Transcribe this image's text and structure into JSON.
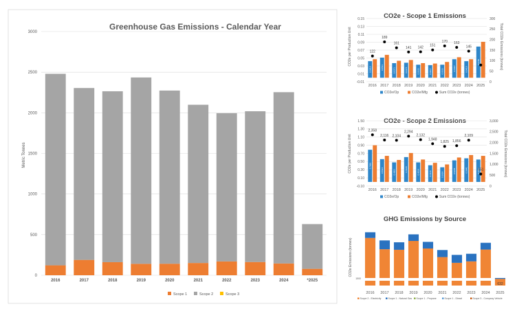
{
  "colors": {
    "scope1": "#ED7D31",
    "scope2": "#A5A5A5",
    "scope3": "#FFC000",
    "op": "#2E86C9",
    "mfg": "#ED7D31",
    "sum": "#000000",
    "grid": "#D9D9D9",
    "stack_orange": "#F08535",
    "stack_blue": "#2A72C0"
  },
  "chart_data": [
    {
      "id": "main",
      "type": "bar",
      "stacked": true,
      "title": "Greenhouse Gas Emissions - Calendar Year",
      "ylabel": "Metric Tonnes",
      "ylim": [
        0,
        3000
      ],
      "yticks": [
        0,
        500,
        1000,
        1500,
        2000,
        2500,
        3000
      ],
      "categories": [
        "2016",
        "2017",
        "2018",
        "2019",
        "2020",
        "2021",
        "2022",
        "2023",
        "2024",
        "*2025"
      ],
      "series": [
        {
          "name": "Scope 1",
          "values": [
            122,
            189,
            161,
            141,
            142,
            151,
            170,
            163,
            145,
            79
          ]
        },
        {
          "name": "Scope 2",
          "values": [
            2358,
            2116,
            2104,
            2294,
            2132,
            1948,
            1825,
            1856,
            2109,
            551
          ]
        },
        {
          "name": "Scope 3",
          "values": [
            0,
            0,
            0,
            0,
            0,
            0,
            0,
            0,
            0,
            0
          ]
        }
      ],
      "legend": "bottom"
    },
    {
      "id": "s1",
      "type": "bar",
      "title": "CO2e - Scope 1 Emissions",
      "ylabel": "CO2e per Production Unit",
      "y2label": "Total CO2e Emissions (tonnes)",
      "ylim": [
        -0.01,
        0.15
      ],
      "yticks": [
        "-0.01",
        "0.01",
        "0.03",
        "0.05",
        "0.07",
        "0.09",
        "0.11",
        "0.13",
        "0.15"
      ],
      "y2lim": [
        0,
        300
      ],
      "y2ticks": [
        "0",
        "50",
        "100",
        "150",
        "200",
        "250",
        "300"
      ],
      "categories": [
        "2016",
        "2017",
        "2018",
        "2019",
        "2020",
        "2021",
        "2022",
        "2023",
        "2024",
        "2025"
      ],
      "series": [
        {
          "name": "CO2e/Op",
          "values": [
            0.042,
            0.051,
            0.037,
            0.038,
            0.033,
            0.032,
            0.033,
            0.047,
            0.042,
            0.079
          ]
        },
        {
          "name": "CO2e/Mfg",
          "values": [
            0.047,
            0.058,
            0.043,
            0.045,
            0.037,
            0.036,
            0.04,
            0.052,
            0.047,
            0.091
          ]
        }
      ],
      "bar_value_labels": [
        "0.0419",
        "0.0511",
        "0.0371",
        "0.0376",
        "0.0333",
        "0.0317",
        "0.0333",
        "0.0467",
        "0.0419",
        "0.0786"
      ],
      "sum_series": {
        "name": "Sum CO2e (tonnes)",
        "values": [
          122,
          189,
          161,
          141,
          142,
          151,
          170,
          163,
          145,
          79
        ]
      },
      "sum_labels": [
        "122",
        "189",
        "161",
        "141",
        "142",
        "151",
        "170",
        "163",
        "145",
        ""
      ],
      "legend": "bottom"
    },
    {
      "id": "s2",
      "type": "bar",
      "title": "CO2e - Scope 2 Emissions",
      "ylabel": "CO2e per Production Unit",
      "y2label": "Total CO2e Emissions (tonnes)",
      "ylim": [
        -0.1,
        1.5
      ],
      "yticks": [
        "-0.10",
        "0.10",
        "0.30",
        "0.50",
        "0.70",
        "0.90",
        "1.10",
        "1.30",
        "1.50"
      ],
      "y2lim": [
        0,
        3000
      ],
      "y2ticks": [
        "0",
        "500",
        "1,000",
        "1,500",
        "2,000",
        "2,500",
        "3,000"
      ],
      "categories": [
        "2016",
        "2017",
        "2018",
        "2019",
        "2020",
        "2021",
        "2022",
        "2023",
        "2024",
        "2025"
      ],
      "series": [
        {
          "name": "CO2e/Op",
          "values": [
            0.79,
            0.56,
            0.48,
            0.61,
            0.48,
            0.41,
            0.36,
            0.53,
            0.58,
            0.55
          ]
        },
        {
          "name": "CO2e/Mfg",
          "values": [
            0.9,
            0.64,
            0.54,
            0.71,
            0.55,
            0.47,
            0.43,
            0.6,
            0.66,
            0.64
          ]
        }
      ],
      "bar_value_labels": [
        "0.7899",
        "0.5624",
        "0.4802",
        "0.6120",
        "0.4819",
        "0.4116",
        "0.3624",
        "0.5258",
        "0.5841",
        "0.5523"
      ],
      "sum_series": {
        "name": "Sum CO2e (tonnes)",
        "values": [
          2358,
          2116,
          2104,
          2294,
          2132,
          1948,
          1825,
          1856,
          2109,
          551
        ]
      },
      "sum_labels": [
        "2,358",
        "2,116",
        "2,104",
        "2,294",
        "2,132",
        "1,948",
        "1,825",
        "1,856",
        "2,109",
        "551"
      ],
      "legend": "bottom"
    },
    {
      "id": "src",
      "type": "bar",
      "stacked": true,
      "title": "GHG Emissions by Source",
      "ylabel": "CO2e Emissions (tonnes)",
      "ytick_label": "1500",
      "ytick_value": 1500,
      "axis_break": true,
      "categories": [
        "2016",
        "2017",
        "2018",
        "2019",
        "2020",
        "2021",
        "2022",
        "2023",
        "2024",
        "2025"
      ],
      "series": [
        {
          "name": "Scope 2 - Electricity",
          "values": [
            2358,
            2116,
            2104,
            2294,
            2132,
            1948,
            1825,
            1856,
            2109,
            551
          ]
        },
        {
          "name": "Scope 1 - Natural Gas",
          "values": [
            122,
            189,
            161,
            141,
            142,
            151,
            170,
            163,
            145,
            79
          ]
        },
        {
          "name": "Scope 1 - Propane",
          "values": [
            0,
            0,
            0,
            0,
            0,
            0,
            0,
            0,
            0,
            0
          ]
        },
        {
          "name": "Scope 1 - Diesel",
          "values": [
            0,
            0,
            0,
            0,
            0,
            0,
            0,
            0,
            0,
            0
          ]
        },
        {
          "name": "Scope 3 - Company Vehicle",
          "values": [
            0,
            0,
            0,
            0,
            0,
            0,
            0,
            0,
            0,
            0
          ]
        }
      ],
      "last_bar_label": "632",
      "legend": "bottom"
    }
  ]
}
